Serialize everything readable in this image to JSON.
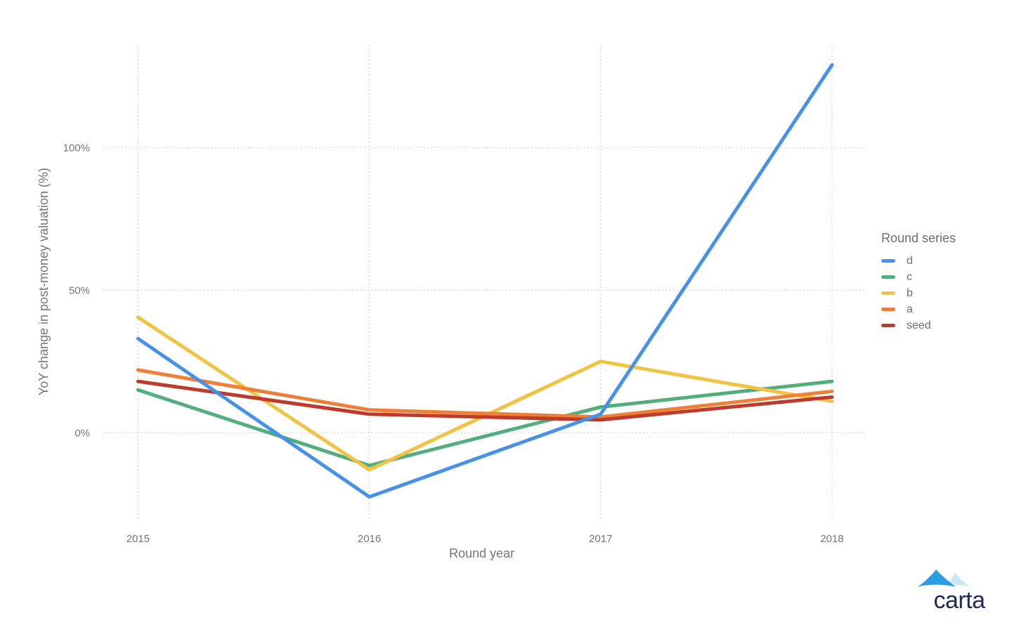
{
  "chart_data": {
    "type": "line",
    "title": "",
    "xlabel": "Round year",
    "ylabel": "YoY change in post-money valuation (%)",
    "categories": [
      2015,
      2016,
      2017,
      2018
    ],
    "x_tick_labels": [
      "2015",
      "2016",
      "2017",
      "2018"
    ],
    "y_ticks": [
      0,
      50,
      100
    ],
    "y_tick_labels": [
      "0%",
      "50%",
      "100%"
    ],
    "xlim": [
      2014.85,
      2018.14
    ],
    "ylim": [
      -30,
      136
    ],
    "grid": "dotted",
    "legend_title": "Round series",
    "legend_position": "right",
    "series": [
      {
        "name": "d",
        "color": "#4792e8",
        "values": [
          33,
          -22.5,
          6.5,
          129
        ]
      },
      {
        "name": "c",
        "color": "#53ae7d",
        "values": [
          15,
          -11.5,
          9,
          18
        ]
      },
      {
        "name": "b",
        "color": "#f2c243",
        "values": [
          40.5,
          -13,
          25,
          11
        ]
      },
      {
        "name": "a",
        "color": "#ee7f36",
        "values": [
          22,
          8,
          5.5,
          14.5
        ]
      },
      {
        "name": "seed",
        "color": "#be3b2b",
        "values": [
          18,
          6.5,
          4.5,
          12.5
        ]
      }
    ],
    "draw_order": [
      "c",
      "b",
      "a",
      "seed",
      "d"
    ]
  },
  "logo": {
    "text": "carta",
    "mark_color": "#2d9de2",
    "mark_light_color": "#cde6f4",
    "text_color": "#1d2c4e"
  }
}
